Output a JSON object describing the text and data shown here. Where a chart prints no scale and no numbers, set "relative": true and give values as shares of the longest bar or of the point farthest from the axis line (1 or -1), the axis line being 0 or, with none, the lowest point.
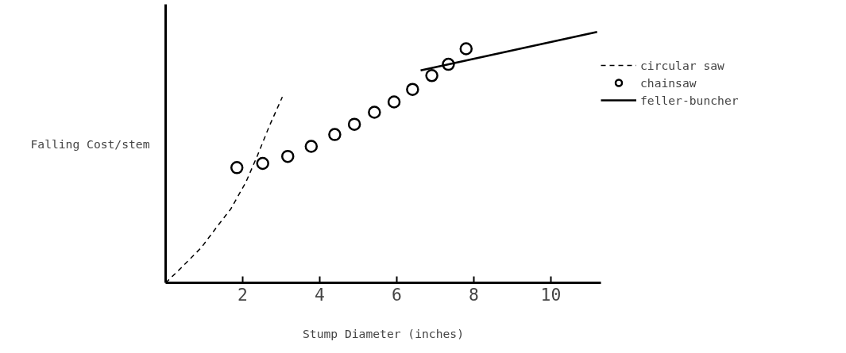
{
  "chart_data": {
    "type": "line",
    "xlabel": "Stump Diameter (inches)",
    "ylabel": "Falling Cost/stem",
    "relative": true,
    "xlim": [
      0,
      11.3
    ],
    "xticks": [
      2,
      4,
      6,
      8,
      10
    ],
    "grid": false,
    "legend": "right",
    "series": [
      {
        "name": "circular saw",
        "line_style": "dashed",
        "marker": "none",
        "color": "#000000",
        "x": [
          0,
          0.4,
          0.93,
          1.39,
          1.69,
          2.08,
          2.38,
          2.69,
          3.03
        ],
        "values": [
          0,
          0.059,
          0.141,
          0.235,
          0.294,
          0.4,
          0.506,
          0.624,
          0.741
        ]
      },
      {
        "name": "chainsaw",
        "type": "scatter",
        "marker": "circle",
        "color": "#000000",
        "x": [
          1.85,
          2.52,
          3.17,
          3.78,
          4.39,
          4.9,
          5.42,
          5.93,
          6.41,
          6.91,
          7.34,
          7.8
        ],
        "values": [
          0.459,
          0.476,
          0.504,
          0.544,
          0.591,
          0.632,
          0.68,
          0.721,
          0.771,
          0.826,
          0.871,
          0.933
        ]
      },
      {
        "name": "feller-buncher",
        "line_style": "solid",
        "marker": "none",
        "color": "#000000",
        "x": [
          6.62,
          11.2
        ],
        "values": [
          0.847,
          1.0
        ]
      }
    ]
  }
}
